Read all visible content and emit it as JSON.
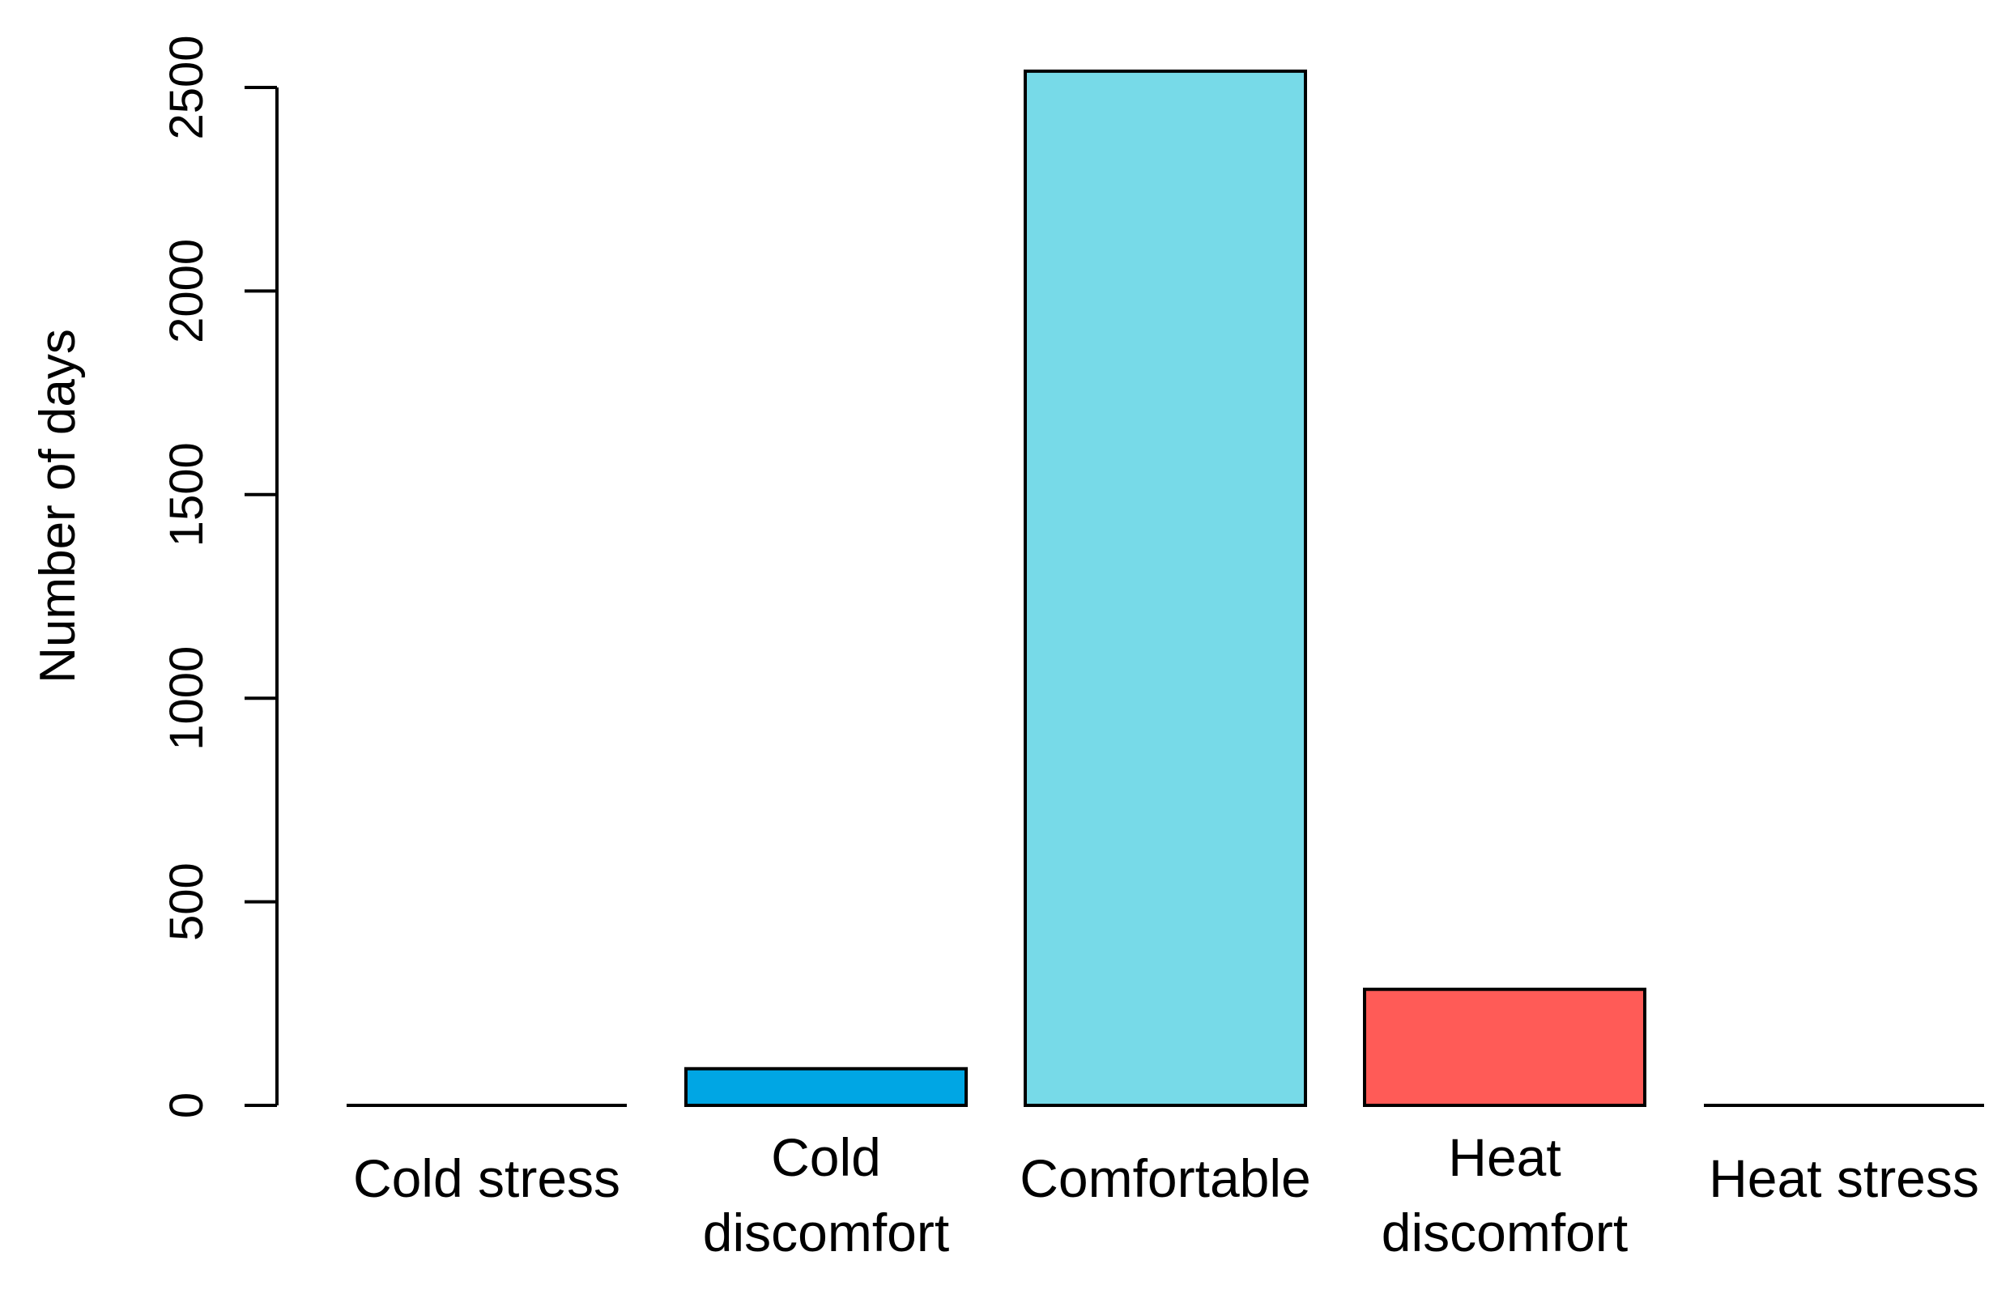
{
  "chart_data": {
    "type": "bar",
    "title": "",
    "xlabel": "",
    "ylabel": "Number of days",
    "ylim": [
      0,
      2500
    ],
    "yticks": [
      0,
      500,
      1000,
      1500,
      2000,
      2500
    ],
    "grid": false,
    "categories": [
      [
        "Cold stress"
      ],
      [
        "Cold",
        "discomfort"
      ],
      [
        "Comfortable"
      ],
      [
        "Heat",
        "discomfort"
      ],
      [
        "Heat stress"
      ]
    ],
    "values": [
      0,
      90,
      2540,
      285,
      0
    ],
    "colors": [
      "#000000",
      "#00A6E4",
      "#77DAE8",
      "#FF5B57",
      "#000000"
    ]
  }
}
